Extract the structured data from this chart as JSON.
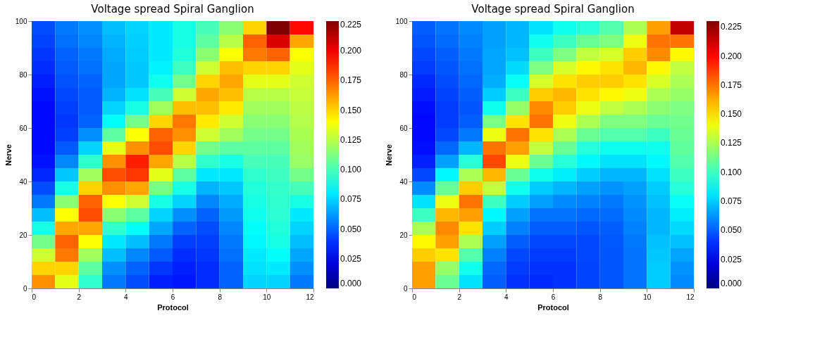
{
  "chart_data": [
    {
      "type": "heatmap",
      "title": "Voltage spread Spiral Ganglion",
      "xlabel": "Protocol",
      "ylabel": "Nerve",
      "xlim": [
        0,
        12
      ],
      "xticks": [
        0,
        2,
        4,
        6,
        8,
        10,
        12
      ],
      "ylim": [
        0,
        100
      ],
      "yticks": [
        0,
        20,
        40,
        60,
        80,
        100
      ],
      "grid": false,
      "clim": [
        0,
        0.225
      ],
      "cticks": [
        {
          "value": 0,
          "label": "0.000"
        },
        {
          "value": 0.025,
          "label": "0.025"
        },
        {
          "value": 0.05,
          "label": "0.050"
        },
        {
          "value": 0.075,
          "label": "0.075"
        },
        {
          "value": 0.1,
          "label": "0.100"
        },
        {
          "value": 0.125,
          "label": "0.125"
        },
        {
          "value": 0.15,
          "label": "0.150"
        },
        {
          "value": 0.175,
          "label": "0.175"
        },
        {
          "value": 0.2,
          "label": "0.200"
        },
        {
          "value": 0.225,
          "label": "0.225"
        }
      ],
      "cells": [
        [
          0.045,
          0.055,
          0.06,
          0.07,
          0.075,
          0.08,
          0.09,
          0.1,
          0.115,
          0.15,
          0.225,
          0.195
        ],
        [
          0.043,
          0.053,
          0.058,
          0.068,
          0.074,
          0.08,
          0.09,
          0.105,
          0.125,
          0.175,
          0.205,
          0.16
        ],
        [
          0.04,
          0.05,
          0.055,
          0.066,
          0.073,
          0.08,
          0.092,
          0.115,
          0.14,
          0.17,
          0.175,
          0.14
        ],
        [
          0.038,
          0.048,
          0.053,
          0.065,
          0.072,
          0.082,
          0.098,
          0.13,
          0.155,
          0.15,
          0.15,
          0.135
        ],
        [
          0.035,
          0.046,
          0.05,
          0.065,
          0.072,
          0.088,
          0.11,
          0.15,
          0.16,
          0.135,
          0.135,
          0.13
        ],
        [
          0.032,
          0.044,
          0.048,
          0.068,
          0.078,
          0.1,
          0.13,
          0.16,
          0.155,
          0.125,
          0.125,
          0.128
        ],
        [
          0.03,
          0.042,
          0.048,
          0.075,
          0.09,
          0.12,
          0.155,
          0.155,
          0.145,
          0.12,
          0.12,
          0.126
        ],
        [
          0.03,
          0.04,
          0.05,
          0.085,
          0.11,
          0.15,
          0.17,
          0.145,
          0.13,
          0.115,
          0.115,
          0.124
        ],
        [
          0.03,
          0.042,
          0.06,
          0.105,
          0.14,
          0.175,
          0.165,
          0.13,
          0.12,
          0.11,
          0.11,
          0.122
        ],
        [
          0.03,
          0.048,
          0.075,
          0.135,
          0.165,
          0.18,
          0.15,
          0.11,
          0.105,
          0.105,
          0.105,
          0.12
        ],
        [
          0.032,
          0.058,
          0.095,
          0.165,
          0.19,
          0.16,
          0.125,
          0.095,
          0.09,
          0.1,
          0.1,
          0.118
        ],
        [
          0.036,
          0.072,
          0.12,
          0.18,
          0.185,
          0.135,
          0.105,
          0.08,
          0.08,
          0.095,
          0.098,
          0.11
        ],
        [
          0.045,
          0.09,
          0.15,
          0.165,
          0.16,
          0.11,
          0.09,
          0.068,
          0.072,
          0.092,
          0.096,
          0.1
        ],
        [
          0.055,
          0.115,
          0.175,
          0.14,
          0.13,
          0.09,
          0.075,
          0.058,
          0.066,
          0.09,
          0.095,
          0.09
        ],
        [
          0.07,
          0.14,
          0.18,
          0.115,
          0.105,
          0.075,
          0.06,
          0.05,
          0.062,
          0.088,
          0.094,
          0.08
        ],
        [
          0.09,
          0.16,
          0.16,
          0.095,
          0.085,
          0.065,
          0.05,
          0.045,
          0.058,
          0.085,
          0.092,
          0.075
        ],
        [
          0.11,
          0.175,
          0.14,
          0.08,
          0.07,
          0.055,
          0.042,
          0.042,
          0.055,
          0.083,
          0.09,
          0.07
        ],
        [
          0.13,
          0.17,
          0.12,
          0.07,
          0.058,
          0.048,
          0.038,
          0.04,
          0.053,
          0.08,
          0.085,
          0.065
        ],
        [
          0.15,
          0.15,
          0.105,
          0.06,
          0.05,
          0.04,
          0.035,
          0.038,
          0.05,
          0.078,
          0.08,
          0.06
        ],
        [
          0.165,
          0.135,
          0.095,
          0.055,
          0.045,
          0.035,
          0.033,
          0.038,
          0.05,
          0.075,
          0.075,
          0.055
        ]
      ]
    },
    {
      "type": "heatmap",
      "title": "Voltage spread Spiral Ganglion",
      "xlabel": "Protocol",
      "ylabel": "Nerve",
      "xlim": [
        0,
        12
      ],
      "xticks": [
        0,
        2,
        4,
        6,
        8,
        10,
        12
      ],
      "ylim": [
        0,
        100
      ],
      "yticks": [
        0,
        20,
        40,
        60,
        80,
        100
      ],
      "grid": false,
      "clim": [
        0,
        0.23
      ],
      "cticks": [
        {
          "value": 0,
          "label": "0.000"
        },
        {
          "value": 0.025,
          "label": "0.025"
        },
        {
          "value": 0.05,
          "label": "0.050"
        },
        {
          "value": 0.075,
          "label": "0.075"
        },
        {
          "value": 0.1,
          "label": "0.100"
        },
        {
          "value": 0.125,
          "label": "0.125"
        },
        {
          "value": 0.15,
          "label": "0.150"
        },
        {
          "value": 0.175,
          "label": "0.175"
        },
        {
          "value": 0.2,
          "label": "0.200"
        },
        {
          "value": 0.225,
          "label": "0.225"
        }
      ],
      "cells": [
        [
          0.05,
          0.055,
          0.06,
          0.065,
          0.07,
          0.08,
          0.09,
          0.095,
          0.105,
          0.125,
          0.165,
          0.215
        ],
        [
          0.048,
          0.053,
          0.058,
          0.065,
          0.07,
          0.09,
          0.1,
          0.11,
          0.115,
          0.14,
          0.175,
          0.175
        ],
        [
          0.045,
          0.05,
          0.056,
          0.066,
          0.072,
          0.1,
          0.115,
          0.13,
          0.135,
          0.155,
          0.17,
          0.145
        ],
        [
          0.042,
          0.048,
          0.054,
          0.066,
          0.078,
          0.115,
          0.135,
          0.145,
          0.15,
          0.16,
          0.145,
          0.13
        ],
        [
          0.038,
          0.046,
          0.052,
          0.068,
          0.088,
          0.135,
          0.15,
          0.155,
          0.155,
          0.15,
          0.135,
          0.125
        ],
        [
          0.035,
          0.044,
          0.05,
          0.075,
          0.1,
          0.155,
          0.16,
          0.15,
          0.145,
          0.14,
          0.125,
          0.12
        ],
        [
          0.032,
          0.042,
          0.048,
          0.09,
          0.12,
          0.17,
          0.155,
          0.14,
          0.13,
          0.125,
          0.118,
          0.115
        ],
        [
          0.03,
          0.042,
          0.05,
          0.115,
          0.15,
          0.175,
          0.14,
          0.125,
          0.115,
          0.115,
          0.11,
          0.112
        ],
        [
          0.03,
          0.045,
          0.056,
          0.14,
          0.175,
          0.15,
          0.125,
          0.11,
          0.105,
          0.105,
          0.1,
          0.11
        ],
        [
          0.032,
          0.052,
          0.07,
          0.175,
          0.165,
          0.13,
          0.11,
          0.095,
          0.09,
          0.09,
          0.09,
          0.108
        ],
        [
          0.036,
          0.065,
          0.095,
          0.185,
          0.14,
          0.11,
          0.095,
          0.085,
          0.08,
          0.08,
          0.085,
          0.105
        ],
        [
          0.045,
          0.085,
          0.125,
          0.16,
          0.11,
          0.09,
          0.082,
          0.075,
          0.07,
          0.07,
          0.08,
          0.1
        ],
        [
          0.06,
          0.11,
          0.155,
          0.13,
          0.09,
          0.075,
          0.07,
          0.065,
          0.062,
          0.065,
          0.075,
          0.095
        ],
        [
          0.08,
          0.14,
          0.175,
          0.1,
          0.075,
          0.065,
          0.06,
          0.058,
          0.056,
          0.062,
          0.072,
          0.088
        ],
        [
          0.1,
          0.16,
          0.165,
          0.085,
          0.065,
          0.055,
          0.055,
          0.052,
          0.053,
          0.06,
          0.07,
          0.082
        ],
        [
          0.125,
          0.17,
          0.15,
          0.075,
          0.058,
          0.05,
          0.05,
          0.048,
          0.05,
          0.058,
          0.07,
          0.078
        ],
        [
          0.145,
          0.165,
          0.125,
          0.065,
          0.05,
          0.045,
          0.045,
          0.045,
          0.049,
          0.056,
          0.072,
          0.072
        ],
        [
          0.155,
          0.15,
          0.105,
          0.058,
          0.045,
          0.042,
          0.042,
          0.045,
          0.048,
          0.055,
          0.074,
          0.066
        ],
        [
          0.165,
          0.12,
          0.09,
          0.052,
          0.042,
          0.04,
          0.04,
          0.044,
          0.048,
          0.055,
          0.075,
          0.062
        ],
        [
          0.165,
          0.11,
          0.08,
          0.05,
          0.04,
          0.038,
          0.04,
          0.044,
          0.048,
          0.055,
          0.075,
          0.06
        ]
      ]
    }
  ]
}
